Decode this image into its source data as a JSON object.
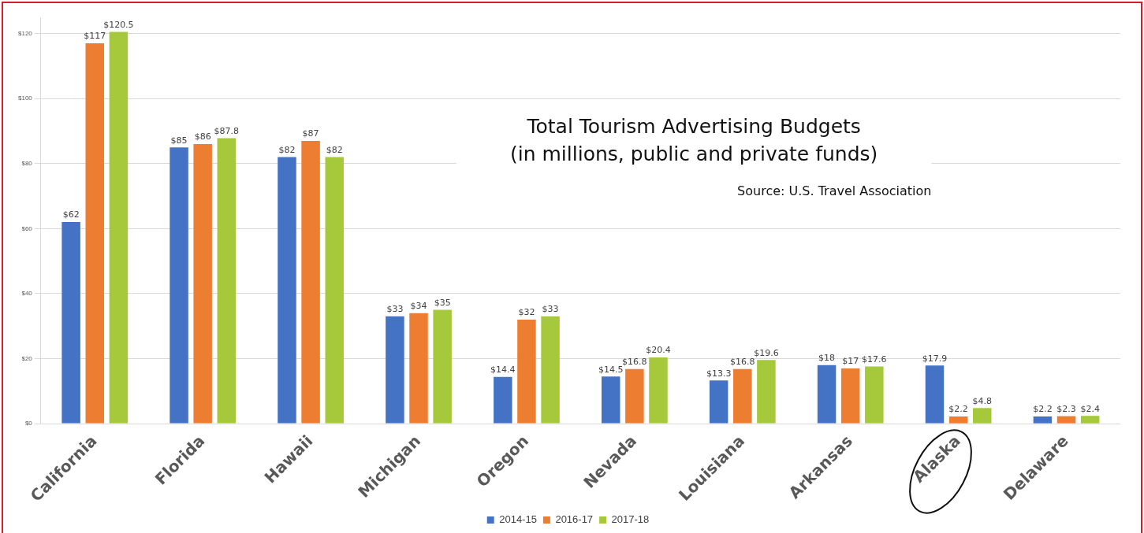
{
  "chart_data": {
    "type": "bar",
    "title": "Total Tourism Advertising Budgets",
    "subtitle": "(in millions, public and private funds)",
    "annotations": [
      "Source: U.S. Travel Association"
    ],
    "categories": [
      "California",
      "Florida",
      "Hawaii",
      "Michigan",
      "Oregon",
      "Nevada",
      "Louisiana",
      "Arkansas",
      "Alaska",
      "Delaware"
    ],
    "series": [
      {
        "name": "2014-15",
        "color": "#4472c4",
        "values": [
          62,
          85,
          82,
          33,
          14.4,
          14.5,
          13.3,
          18,
          17.9,
          2.2
        ],
        "value_labels": [
          "$62",
          "$85",
          "$82",
          "$33",
          "$14.4",
          "$14.5",
          "$13.3",
          "$18",
          "$17.9",
          "$2.2"
        ]
      },
      {
        "name": "2016-17",
        "color": "#ed7d31",
        "values": [
          117,
          86,
          87,
          34,
          32,
          16.8,
          16.8,
          17,
          2.2,
          2.3
        ],
        "value_labels": [
          "$117",
          "$86",
          "$87",
          "$34",
          "$32",
          "$16.8",
          "$16.8",
          "$17",
          "$2.2",
          "$2.3"
        ]
      },
      {
        "name": "2017-18",
        "color": "#a5c93a",
        "values": [
          120.5,
          87.8,
          82,
          35,
          33,
          20.4,
          19.6,
          17.6,
          4.8,
          2.4
        ],
        "value_labels": [
          "$120.5",
          "$87.8",
          "$82",
          "$35",
          "$33",
          "$20.4",
          "$19.6",
          "$17.6",
          "$4.8",
          "$2.4"
        ]
      }
    ],
    "ylim": [
      0,
      125
    ],
    "yticks": [
      {
        "value": 0,
        "label": "$0"
      },
      {
        "value": 20,
        "label": "$20"
      },
      {
        "value": 40,
        "label": "$40"
      },
      {
        "value": 60,
        "label": "$60"
      },
      {
        "value": 80,
        "label": "$80"
      },
      {
        "value": 100,
        "label": "$100"
      },
      {
        "value": 120,
        "label": "$120"
      }
    ],
    "grid": "y",
    "legend": "bottom"
  }
}
